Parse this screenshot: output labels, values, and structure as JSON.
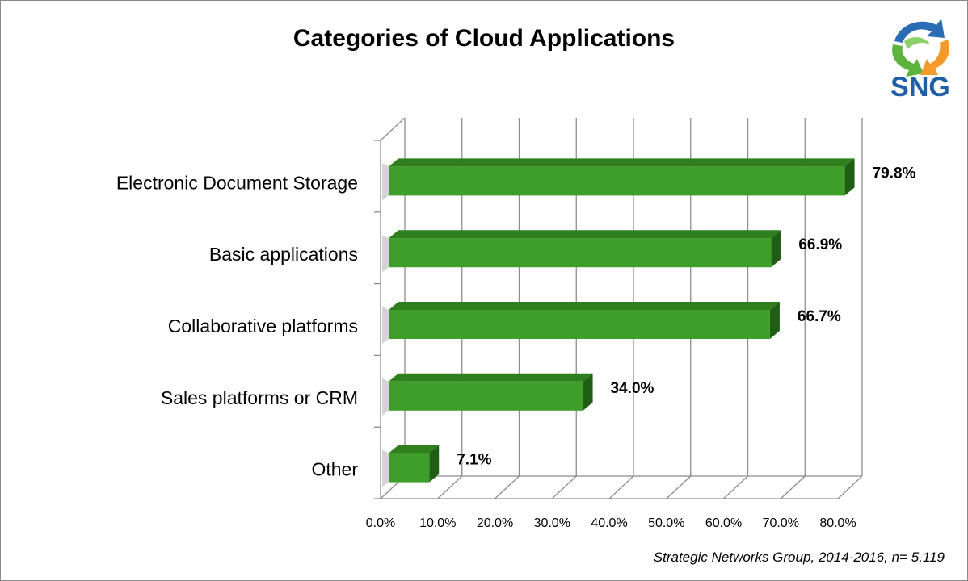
{
  "chart_data": {
    "type": "bar",
    "orientation": "horizontal",
    "title": "Categories of Cloud Applications",
    "categories": [
      "Electronic Document Storage",
      "Basic applications",
      "Collaborative platforms",
      "Sales platforms or CRM",
      "Other"
    ],
    "values": [
      79.8,
      66.9,
      66.7,
      34.0,
      7.1
    ],
    "value_labels": [
      "79.8%",
      "66.9%",
      "66.7%",
      "34.0%",
      "7.1%"
    ],
    "xlim": [
      0,
      80
    ],
    "x_ticks": [
      "0.0%",
      "10.0%",
      "20.0%",
      "30.0%",
      "40.0%",
      "50.0%",
      "60.0%",
      "70.0%",
      "80.0%"
    ],
    "grid": "vertical",
    "bar_color": "#3d9e29",
    "style": "3d"
  },
  "footnote": "Strategic Networks Group, 2014-2016, n= 5,119",
  "logo": {
    "text": "SNG",
    "colors": {
      "text": "#1f5fa8",
      "green": "#5cb43a",
      "blue": "#2a6db5",
      "orange": "#f39a2b"
    }
  }
}
